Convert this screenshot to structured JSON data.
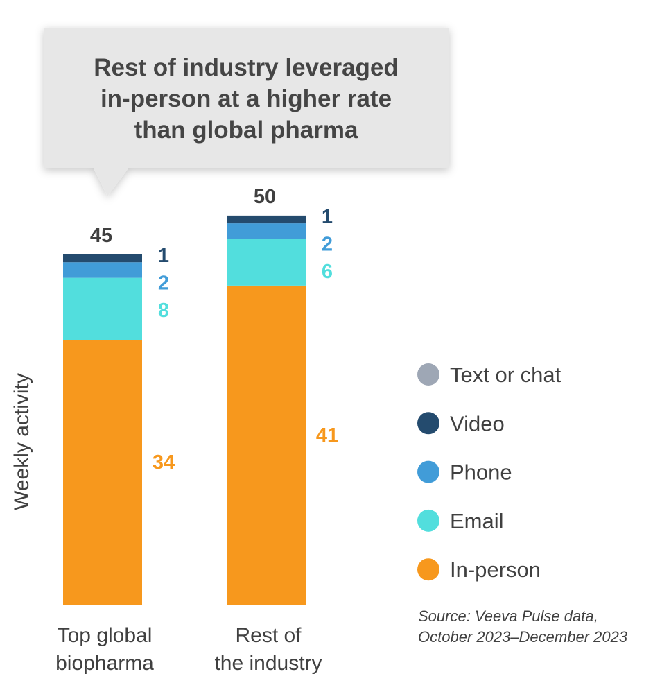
{
  "callout": {
    "lines": [
      "Rest of industry leveraged",
      "in-person at a higher rate",
      "than global pharma"
    ]
  },
  "chart_data": {
    "type": "bar",
    "stacked": true,
    "title": "Rest of industry leveraged in-person at a higher rate than global pharma",
    "ylabel": "Weekly activity",
    "xlabel": "",
    "ylim": [
      0,
      50
    ],
    "grid": false,
    "legend_position": "right",
    "categories": [
      "Top global biopharma",
      "Rest of the industry"
    ],
    "category_lines": [
      [
        "Top global",
        "biopharma"
      ],
      [
        "Rest of",
        "the industry"
      ]
    ],
    "totals": [
      45,
      50
    ],
    "series": [
      {
        "name": "In-person",
        "color": "#F7981D",
        "values": [
          34,
          41
        ]
      },
      {
        "name": "Email",
        "color": "#52DEDD",
        "values": [
          8,
          6
        ]
      },
      {
        "name": "Phone",
        "color": "#419CD8",
        "values": [
          2,
          2
        ]
      },
      {
        "name": "Video",
        "color": "#244B6E",
        "values": [
          1,
          1
        ]
      },
      {
        "name": "Text or chat",
        "color": "#9EA7B5",
        "values": [
          0,
          0
        ]
      }
    ],
    "legend": [
      "Text or chat",
      "Video",
      "Phone",
      "Email",
      "In-person"
    ],
    "source": [
      "Source: Veeva Pulse data,",
      "October 2023–December 2023"
    ]
  }
}
